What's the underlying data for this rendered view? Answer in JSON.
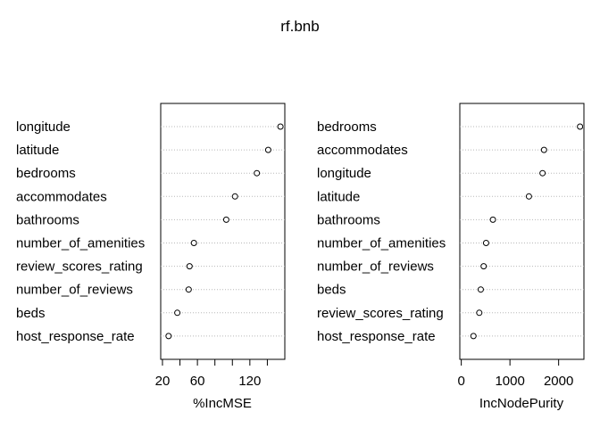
{
  "figure_title": "rf.bnb",
  "chart_data": [
    {
      "type": "scatter",
      "title": "",
      "xlabel": "%IncMSE",
      "ylabel": "",
      "xlim": [
        18,
        160
      ],
      "xticks": [
        20,
        60,
        120
      ],
      "grid": "dotted horizontal",
      "categories": [
        "longitude",
        "latitude",
        "bedrooms",
        "accommodates",
        "bathrooms",
        "number_of_amenities",
        "review_scores_rating",
        "number_of_reviews",
        "beds",
        "host_response_rate"
      ],
      "values": [
        155,
        141,
        128,
        103,
        93,
        56,
        51,
        50,
        37,
        27
      ]
    },
    {
      "type": "scatter",
      "title": "",
      "xlabel": "IncNodePurity",
      "ylabel": "",
      "xlim": [
        -30,
        2520
      ],
      "xticks": [
        0,
        1000,
        2000
      ],
      "grid": "dotted horizontal",
      "categories": [
        "bedrooms",
        "accommodates",
        "longitude",
        "latitude",
        "bathrooms",
        "number_of_amenities",
        "number_of_reviews",
        "beds",
        "review_scores_rating",
        "host_response_rate"
      ],
      "values": [
        2440,
        1700,
        1670,
        1390,
        650,
        510,
        460,
        400,
        370,
        250
      ]
    }
  ]
}
